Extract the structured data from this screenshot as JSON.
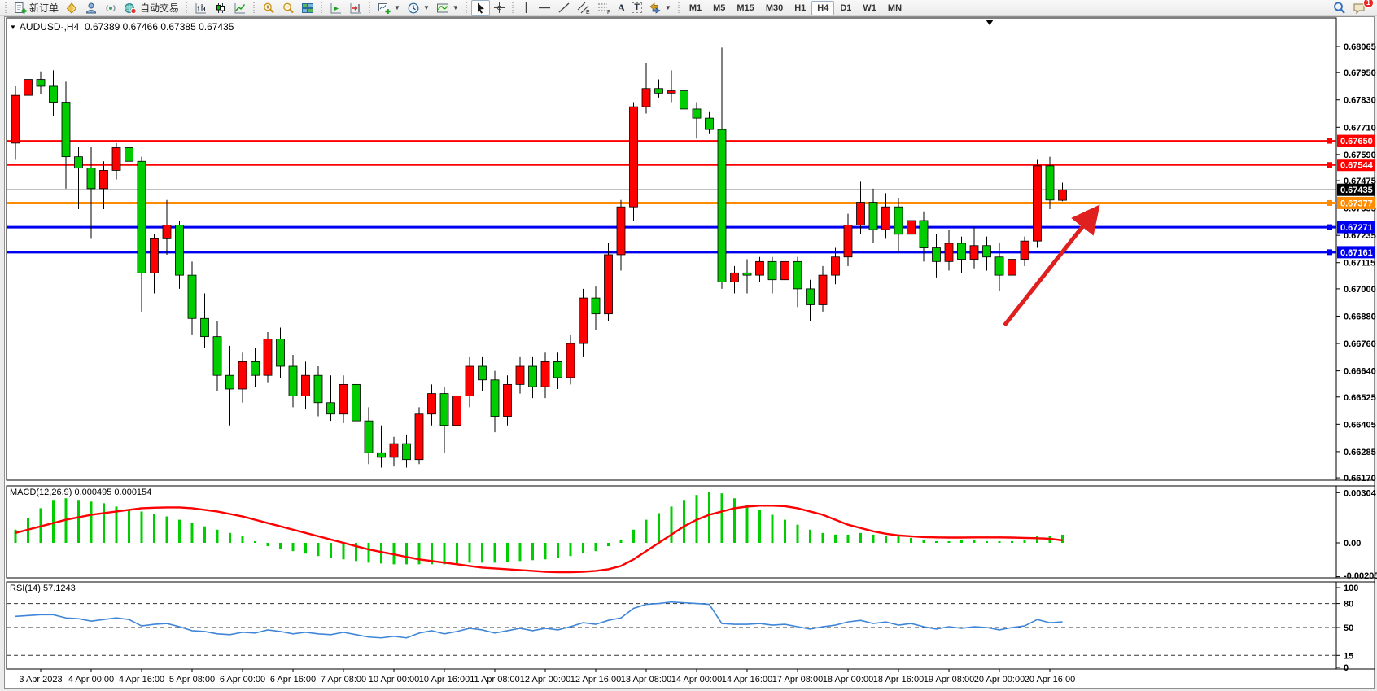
{
  "toolbar": {
    "new_order_label": "新订单",
    "auto_trading_label": "自动交易",
    "tools": {
      "text_letter": "A",
      "label_letter": "T",
      "channel_sub": "E",
      "fibo_sub": "F"
    },
    "timeframes": [
      "M1",
      "M5",
      "M15",
      "M30",
      "H1",
      "H4",
      "D1",
      "W1",
      "MN"
    ],
    "active_timeframe": "H4",
    "notification_count": "1"
  },
  "chart": {
    "title_symbol": "AUDUSD-,H4",
    "title_ohlc": "0.67389 0.67466 0.67385 0.67435"
  },
  "indicators": {
    "macd_label": "MACD(12,26,9) 0.000495 0.000154",
    "rsi_label": "RSI(14) 57.1243"
  },
  "chart_data": {
    "type": "candlestick",
    "symbol": "AUDUSD-",
    "timeframe": "H4",
    "title": "AUDUSD-,H4 0.67389 0.67466 0.67385 0.67435",
    "ylim": [
      0.6617,
      0.68065
    ],
    "grid": false,
    "up_color": "#ff0000",
    "down_color": "#00cd00",
    "price_ticks": [
      "0.68065",
      "0.67950",
      "0.67830",
      "0.67710",
      "0.67590",
      "0.67475",
      "0.67355",
      "0.67235",
      "0.67115",
      "0.67000",
      "0.66880",
      "0.66760",
      "0.66640",
      "0.66525",
      "0.66405",
      "0.66285",
      "0.66170"
    ],
    "current_price": {
      "value": 0.67435,
      "label": "0.67435",
      "color": "#000000"
    },
    "hlines": [
      {
        "price": 0.6765,
        "label": "0.67650",
        "color": "#fe0000",
        "width": 2
      },
      {
        "price": 0.67544,
        "label": "0.67544",
        "color": "#fe0000",
        "width": 2
      },
      {
        "price": 0.67377,
        "label": "0.67377",
        "color": "#ff8c00",
        "width": 3
      },
      {
        "price": 0.67271,
        "label": "0.67271",
        "color": "#0000f0",
        "width": 3
      },
      {
        "price": 0.67161,
        "label": "0.67161",
        "color": "#0000f0",
        "width": 3
      }
    ],
    "x_labels": [
      {
        "label": "3 Apr 2023",
        "index": 2
      },
      {
        "label": "4 Apr 00:00",
        "index": 6
      },
      {
        "label": "4 Apr 16:00",
        "index": 10
      },
      {
        "label": "5 Apr 08:00",
        "index": 14
      },
      {
        "label": "6 Apr 00:00",
        "index": 18
      },
      {
        "label": "6 Apr 16:00",
        "index": 22
      },
      {
        "label": "7 Apr 08:00",
        "index": 26
      },
      {
        "label": "10 Apr 00:00",
        "index": 30
      },
      {
        "label": "10 Apr 16:00",
        "index": 34
      },
      {
        "label": "11 Apr 08:00",
        "index": 38
      },
      {
        "label": "12 Apr 00:00",
        "index": 42
      },
      {
        "label": "12 Apr 16:00",
        "index": 46
      },
      {
        "label": "13 Apr 08:00",
        "index": 50
      },
      {
        "label": "14 Apr 00:00",
        "index": 54
      },
      {
        "label": "14 Apr 16:00",
        "index": 58
      },
      {
        "label": "17 Apr 08:00",
        "index": 62
      },
      {
        "label": "18 Apr 00:00",
        "index": 66
      },
      {
        "label": "18 Apr 16:00",
        "index": 70
      },
      {
        "label": "19 Apr 08:00",
        "index": 74
      },
      {
        "label": "20 Apr 00:00",
        "index": 78
      },
      {
        "label": "20 Apr 16:00",
        "index": 82
      }
    ],
    "candles": [
      [
        0.6764,
        0.6789,
        0.6757,
        0.6785
      ],
      [
        0.6785,
        0.6795,
        0.6776,
        0.6792
      ],
      [
        0.6792,
        0.67955,
        0.67855,
        0.6789
      ],
      [
        0.6789,
        0.6796,
        0.6776,
        0.6782
      ],
      [
        0.6782,
        0.6791,
        0.6744,
        0.6758
      ],
      [
        0.6758,
        0.67625,
        0.6735,
        0.6753
      ],
      [
        0.6753,
        0.67625,
        0.6722,
        0.6744
      ],
      [
        0.6744,
        0.6756,
        0.6735,
        0.6752
      ],
      [
        0.6752,
        0.6764,
        0.6748,
        0.6762
      ],
      [
        0.6762,
        0.6781,
        0.6744,
        0.6756
      ],
      [
        0.6756,
        0.6758,
        0.669,
        0.6707
      ],
      [
        0.6707,
        0.6724,
        0.6698,
        0.6722
      ],
      [
        0.6722,
        0.6739,
        0.6715,
        0.6728
      ],
      [
        0.6728,
        0.673,
        0.67,
        0.6706
      ],
      [
        0.6706,
        0.6712,
        0.668,
        0.6687
      ],
      [
        0.6687,
        0.6698,
        0.6674,
        0.6679
      ],
      [
        0.6679,
        0.6686,
        0.6655,
        0.6662
      ],
      [
        0.6662,
        0.6675,
        0.664,
        0.6656
      ],
      [
        0.6656,
        0.6672,
        0.665,
        0.6668
      ],
      [
        0.6668,
        0.6674,
        0.6657,
        0.6662
      ],
      [
        0.6662,
        0.6681,
        0.6659,
        0.6678
      ],
      [
        0.6678,
        0.6683,
        0.6661,
        0.6666
      ],
      [
        0.6666,
        0.6671,
        0.6648,
        0.6653
      ],
      [
        0.6653,
        0.6668,
        0.6647,
        0.6662
      ],
      [
        0.6662,
        0.6666,
        0.6644,
        0.665
      ],
      [
        0.665,
        0.6662,
        0.6642,
        0.6645
      ],
      [
        0.6645,
        0.6662,
        0.6641,
        0.6658
      ],
      [
        0.6658,
        0.6661,
        0.6637,
        0.6642
      ],
      [
        0.6642,
        0.6648,
        0.6623,
        0.6628
      ],
      [
        0.6628,
        0.664,
        0.66215,
        0.6626
      ],
      [
        0.6626,
        0.6635,
        0.6622,
        0.6632
      ],
      [
        0.6632,
        0.6636,
        0.66215,
        0.6625
      ],
      [
        0.6625,
        0.6648,
        0.6623,
        0.6645
      ],
      [
        0.6645,
        0.6658,
        0.664,
        0.6654
      ],
      [
        0.6654,
        0.6657,
        0.6628,
        0.664
      ],
      [
        0.664,
        0.6656,
        0.6636,
        0.6653
      ],
      [
        0.6653,
        0.667,
        0.6648,
        0.6666
      ],
      [
        0.6666,
        0.667,
        0.6655,
        0.666
      ],
      [
        0.666,
        0.6664,
        0.6637,
        0.6644
      ],
      [
        0.6644,
        0.6662,
        0.664,
        0.6658
      ],
      [
        0.6658,
        0.667,
        0.6654,
        0.6666
      ],
      [
        0.6666,
        0.667,
        0.6652,
        0.6657
      ],
      [
        0.6657,
        0.6672,
        0.6652,
        0.6668
      ],
      [
        0.6668,
        0.6672,
        0.6656,
        0.6661
      ],
      [
        0.6661,
        0.668,
        0.6658,
        0.6676
      ],
      [
        0.6676,
        0.67,
        0.667,
        0.6696
      ],
      [
        0.6696,
        0.6701,
        0.6682,
        0.6689
      ],
      [
        0.6689,
        0.672,
        0.6686,
        0.6715
      ],
      [
        0.6715,
        0.6739,
        0.6708,
        0.6736
      ],
      [
        0.6736,
        0.6782,
        0.673,
        0.678
      ],
      [
        0.678,
        0.6799,
        0.6777,
        0.6788
      ],
      [
        0.6788,
        0.6792,
        0.6784,
        0.6786
      ],
      [
        0.6786,
        0.6796,
        0.6782,
        0.6787
      ],
      [
        0.6787,
        0.679,
        0.677,
        0.6779
      ],
      [
        0.6779,
        0.6782,
        0.6766,
        0.6775
      ],
      [
        0.6775,
        0.6778,
        0.6768,
        0.677
      ],
      [
        0.677,
        0.6806,
        0.67,
        0.6703
      ],
      [
        0.6703,
        0.671,
        0.6698,
        0.6707
      ],
      [
        0.6707,
        0.6713,
        0.6698,
        0.6706
      ],
      [
        0.6706,
        0.6714,
        0.6703,
        0.6712
      ],
      [
        0.6712,
        0.6714,
        0.6698,
        0.6704
      ],
      [
        0.6704,
        0.6716,
        0.67,
        0.6712
      ],
      [
        0.6712,
        0.6714,
        0.6692,
        0.67
      ],
      [
        0.67,
        0.6704,
        0.6686,
        0.6693
      ],
      [
        0.6693,
        0.671,
        0.669,
        0.6706
      ],
      [
        0.6706,
        0.6718,
        0.6702,
        0.6714
      ],
      [
        0.6714,
        0.6733,
        0.671,
        0.6728
      ],
      [
        0.6728,
        0.6747,
        0.6724,
        0.6738
      ],
      [
        0.6738,
        0.6744,
        0.672,
        0.6726
      ],
      [
        0.6726,
        0.6742,
        0.6722,
        0.6736
      ],
      [
        0.6736,
        0.674,
        0.6716,
        0.6724
      ],
      [
        0.6724,
        0.6738,
        0.672,
        0.673
      ],
      [
        0.673,
        0.6734,
        0.6712,
        0.6718
      ],
      [
        0.6718,
        0.6724,
        0.6705,
        0.6712
      ],
      [
        0.6712,
        0.6726,
        0.6708,
        0.672
      ],
      [
        0.672,
        0.6723,
        0.6707,
        0.6713
      ],
      [
        0.6713,
        0.6727,
        0.6709,
        0.6719
      ],
      [
        0.6719,
        0.6723,
        0.6708,
        0.6714
      ],
      [
        0.6714,
        0.672,
        0.6699,
        0.6706
      ],
      [
        0.6706,
        0.6716,
        0.6702,
        0.6713
      ],
      [
        0.6713,
        0.6723,
        0.671,
        0.6721
      ],
      [
        0.6721,
        0.6757,
        0.6718,
        0.6754
      ],
      [
        0.6754,
        0.6758,
        0.6735,
        0.6739
      ],
      [
        0.67389,
        0.67466,
        0.67385,
        0.67435
      ]
    ],
    "indicators": [
      {
        "name": "MACD",
        "params": "12,26,9",
        "display_values": "0.000495 0.000154",
        "histogram_color": "#00cd00",
        "signal_color": "#fe0000",
        "y_ticks": [
          "0.00304",
          "0.00",
          "-0.00205"
        ],
        "histogram": [
          0.0008,
          0.0015,
          0.0021,
          0.0026,
          0.0027,
          0.0026,
          0.0025,
          0.0024,
          0.0022,
          0.002,
          0.0019,
          0.00175,
          0.0016,
          0.0014,
          0.0012,
          0.001,
          0.0008,
          0.0006,
          0.0004,
          0.0001,
          -0.0002,
          -0.00035,
          -0.0005,
          -0.00065,
          -0.0008,
          -0.0009,
          -0.001,
          -0.0011,
          -0.0012,
          -0.00125,
          -0.0013,
          -0.0013,
          -0.0013,
          -0.0013,
          -0.0013,
          -0.00125,
          -0.0012,
          -0.0012,
          -0.0012,
          -0.00115,
          -0.0011,
          -0.00105,
          -0.001,
          -0.0009,
          -0.0008,
          -0.0006,
          -0.0005,
          -0.0002,
          0.0002,
          0.0008,
          0.0014,
          0.0018,
          0.0022,
          0.0026,
          0.0029,
          0.0031,
          0.003,
          0.0027,
          0.0023,
          0.002,
          0.0017,
          0.0014,
          0.0011,
          0.0008,
          0.0006,
          0.0005,
          0.0005,
          0.0006,
          0.0005,
          0.0004,
          0.0004,
          0.0003,
          0.0002,
          0.0001,
          0.0001,
          0.0002,
          0.0002,
          0.0001,
          0.0001,
          0.0001,
          0.0002,
          0.0004,
          0.0004,
          0.000495
        ],
        "signal": [
          0.0006,
          0.0008,
          0.001,
          0.0012,
          0.0014,
          0.00155,
          0.0017,
          0.0018,
          0.0019,
          0.002,
          0.0021,
          0.00213,
          0.00215,
          0.00215,
          0.0021,
          0.002,
          0.0019,
          0.00175,
          0.0016,
          0.0014,
          0.0012,
          0.001,
          0.0008,
          0.0006,
          0.0004,
          0.0002,
          0.0,
          -0.0002,
          -0.0004,
          -0.00055,
          -0.0007,
          -0.00085,
          -0.001,
          -0.0011,
          -0.0012,
          -0.0013,
          -0.0014,
          -0.0015,
          -0.00155,
          -0.0016,
          -0.00165,
          -0.0017,
          -0.00175,
          -0.00178,
          -0.00178,
          -0.00175,
          -0.0017,
          -0.0016,
          -0.0014,
          -0.001,
          -0.0005,
          0.0,
          0.0005,
          0.001,
          0.0014,
          0.0017,
          0.0019,
          0.0021,
          0.0022,
          0.00225,
          0.00225,
          0.00222,
          0.0021,
          0.0019,
          0.0017,
          0.0014,
          0.0011,
          0.0009,
          0.0007,
          0.00055,
          0.00045,
          0.0004,
          0.00035,
          0.00033,
          0.00032,
          0.00032,
          0.00033,
          0.00033,
          0.00033,
          0.00032,
          0.0003,
          0.00028,
          0.00025,
          0.000154
        ]
      },
      {
        "name": "RSI",
        "params": "14",
        "display_values": "57.1243",
        "line_color": "#3f86d8",
        "y_ticks": [
          "100",
          "80",
          "50",
          "15",
          "0"
        ],
        "levels": [
          80,
          50,
          15
        ],
        "values": [
          64,
          65,
          66,
          66,
          62,
          61,
          58,
          60,
          62,
          60,
          52,
          54,
          55,
          51,
          46,
          45,
          42,
          41,
          44,
          43,
          47,
          45,
          42,
          44,
          42,
          41,
          44,
          41,
          38,
          37,
          39,
          37,
          43,
          46,
          42,
          45,
          49,
          47,
          43,
          46,
          49,
          46,
          49,
          47,
          51,
          56,
          54,
          59,
          62,
          74,
          79,
          80,
          82,
          81,
          80,
          79,
          55,
          54,
          54,
          55,
          53,
          54,
          51,
          48,
          51,
          53,
          57,
          59,
          55,
          57,
          53,
          55,
          51,
          48,
          51,
          49,
          51,
          50,
          47,
          50,
          52,
          60,
          56,
          57.12
        ]
      }
    ],
    "arrow_annotation": {
      "from": {
        "index": 78.4,
        "price": 0.6684
      },
      "to": {
        "index": 86.0,
        "price": 0.6737
      },
      "color": "#e01f1f"
    }
  }
}
